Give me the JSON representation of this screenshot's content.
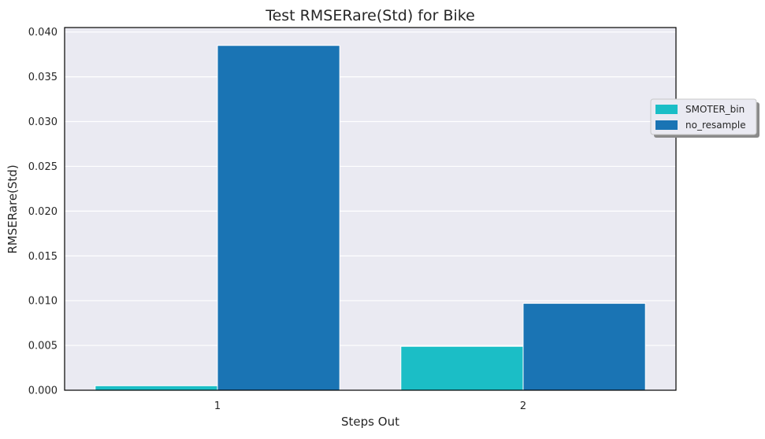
{
  "chart_data": {
    "type": "bar",
    "title": "Test RMSERare(Std) for Bike",
    "xlabel": "Steps Out",
    "ylabel": "RMSERare(Std)",
    "categories": [
      "1",
      "2"
    ],
    "series": [
      {
        "name": "SMOTER_bin",
        "color": "#1bbec6",
        "values": [
          0.0005,
          0.0049
        ]
      },
      {
        "name": "no_resample",
        "color": "#1a74b4",
        "values": [
          0.0385,
          0.0097
        ]
      }
    ],
    "ylim": [
      0,
      0.0405
    ],
    "yticks": [
      "0.000",
      "0.005",
      "0.010",
      "0.015",
      "0.020",
      "0.025",
      "0.030",
      "0.035",
      "0.040"
    ],
    "grid": true,
    "legend_position": "right",
    "colors": {
      "plot_background": "#eaeaf2",
      "gridline": "#ffffff",
      "axis": "#000000"
    }
  }
}
